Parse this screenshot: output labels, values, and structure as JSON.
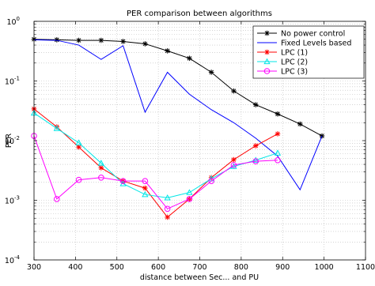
{
  "chart_data": {
    "type": "line",
    "title": "PER comparison between algorithms",
    "xlabel": "distance between Sec... and PU",
    "ylabel": "PER",
    "xlim": [
      300,
      1100
    ],
    "ylim": [
      0.0001,
      1
    ],
    "yscale": "log",
    "grid": true,
    "legend_position": "top-right",
    "x_ticks": [
      300,
      400,
      500,
      600,
      700,
      800,
      900,
      1000,
      1100
    ],
    "y_ticks": [
      {
        "value": 0.0001,
        "base": "10",
        "exp": "-4"
      },
      {
        "value": 0.001,
        "base": "10",
        "exp": "-3"
      },
      {
        "value": 0.01,
        "base": "10",
        "exp": "-2"
      },
      {
        "value": 0.1,
        "base": "10",
        "exp": "-1"
      },
      {
        "value": 1,
        "base": "10",
        "exp": "0"
      }
    ],
    "series": [
      {
        "name": "No power control",
        "color": "#000000",
        "marker": "star",
        "x": [
          300,
          355,
          408,
          462,
          515,
          568,
          622,
          675,
          728,
          782,
          835,
          888,
          942,
          995
        ],
        "y": [
          0.5,
          0.49,
          0.48,
          0.48,
          0.46,
          0.42,
          0.32,
          0.24,
          0.14,
          0.068,
          0.04,
          0.028,
          0.019,
          0.012
        ]
      },
      {
        "name": "Fixed Levels based",
        "color": "#0000ff",
        "marker": "none",
        "x": [
          300,
          355,
          408,
          462,
          515,
          568,
          622,
          675,
          728,
          782,
          835,
          888,
          942,
          995
        ],
        "y": [
          0.49,
          0.48,
          0.4,
          0.23,
          0.39,
          0.03,
          0.14,
          0.06,
          0.033,
          0.02,
          0.011,
          0.0055,
          0.0015,
          0.012
        ]
      },
      {
        "name": "LPC (1)",
        "color": "#ff0000",
        "marker": "star",
        "x": [
          300,
          355,
          408,
          462,
          515,
          568,
          622,
          675,
          728,
          782,
          835,
          888
        ],
        "y": [
          0.034,
          0.017,
          0.0078,
          0.0035,
          0.0021,
          0.0016,
          0.00052,
          0.00105,
          0.0024,
          0.0048,
          0.0082,
          0.013
        ]
      },
      {
        "name": "LPC (2)",
        "color": "#00e6e6",
        "marker": "triangle",
        "x": [
          300,
          355,
          408,
          462,
          515,
          568,
          622,
          675,
          728,
          782,
          835,
          888
        ],
        "y": [
          0.029,
          0.016,
          0.0092,
          0.0042,
          0.0019,
          0.00125,
          0.0011,
          0.00135,
          0.0023,
          0.0037,
          0.0047,
          0.0062
        ]
      },
      {
        "name": "LPC (3)",
        "color": "#ff00ff",
        "marker": "circle",
        "x": [
          300,
          355,
          408,
          462,
          515,
          568,
          622,
          675,
          728,
          782,
          835,
          888
        ],
        "y": [
          0.012,
          0.00105,
          0.0022,
          0.0024,
          0.0021,
          0.0021,
          0.00072,
          0.00105,
          0.0021,
          0.0039,
          0.0045,
          0.0047
        ]
      }
    ]
  }
}
